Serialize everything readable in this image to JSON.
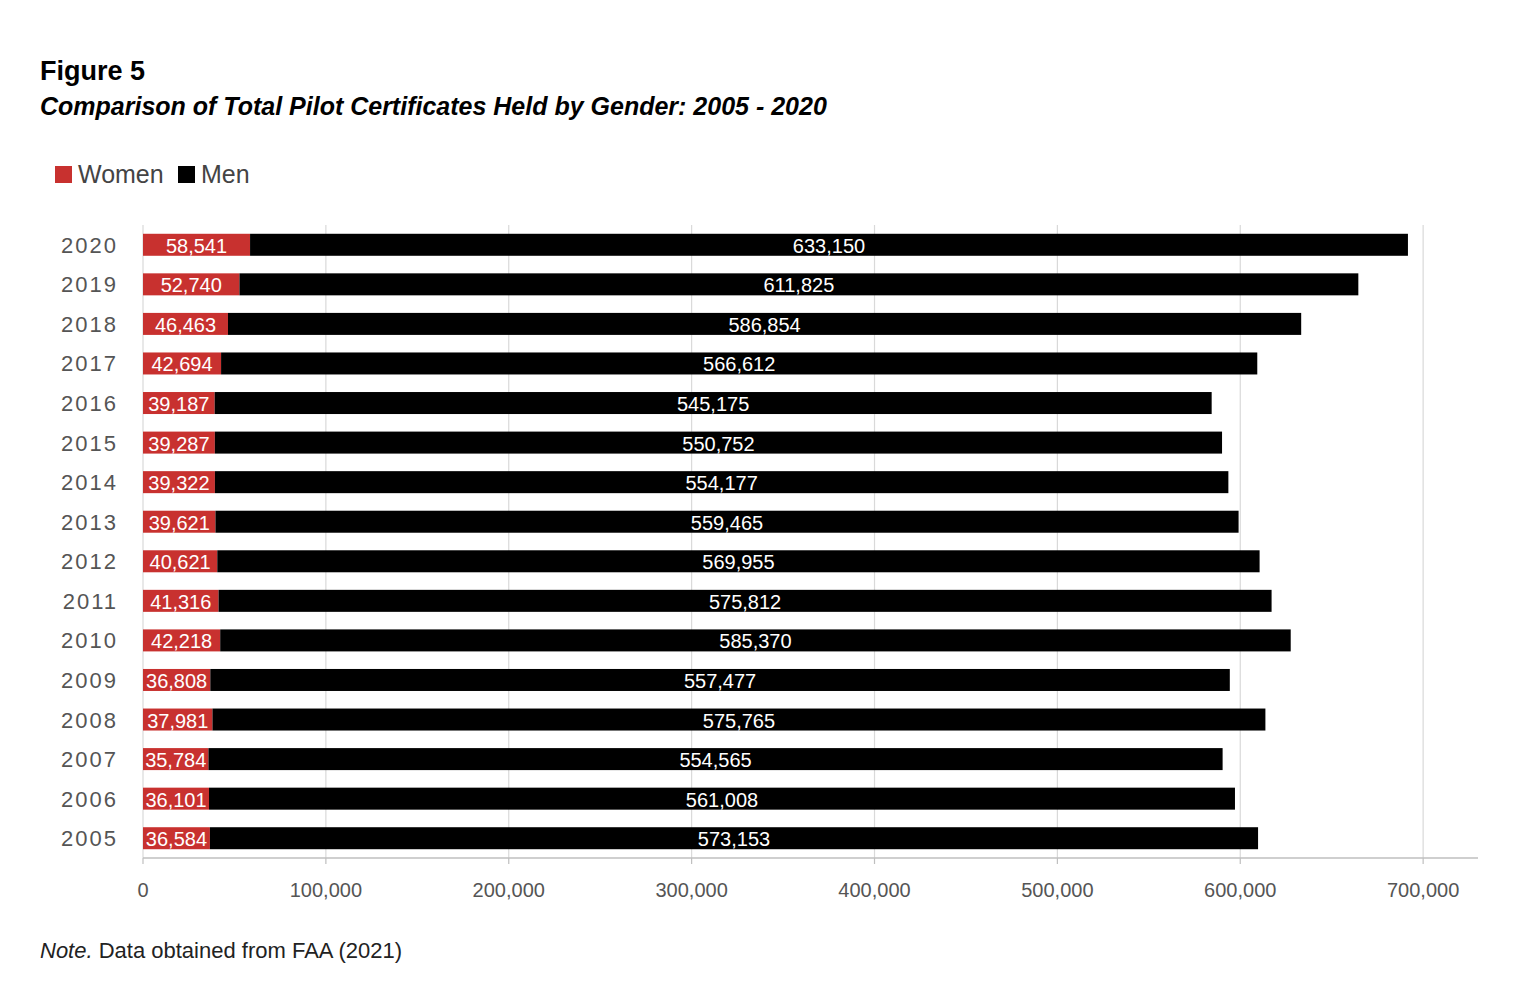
{
  "chart_data": {
    "type": "bar",
    "title": "Figure 5",
    "subtitle": "Comparison of Total Pilot Certificates Held by Gender: 2005 - 2020",
    "annotations": [
      "Note. Data obtained from FAA (2021)"
    ],
    "orientation": "horizontal",
    "stacked": true,
    "data_labels": true,
    "grid": true,
    "legend": "top-left",
    "categories": [
      "2020",
      "2019",
      "2018",
      "2017",
      "2016",
      "2015",
      "2014",
      "2013",
      "2012",
      "2011",
      "2010",
      "2009",
      "2008",
      "2007",
      "2006",
      "2005"
    ],
    "series": [
      {
        "name": "Women",
        "color": "#c8312f",
        "values": [
          58541,
          52740,
          46463,
          42694,
          39187,
          39287,
          39322,
          39621,
          40621,
          41316,
          42218,
          36808,
          37981,
          35784,
          36101,
          36584
        ],
        "value_labels": [
          "58,541",
          "52,740",
          "46,463",
          "42,694",
          "39,187",
          "39,287",
          "39,322",
          "39,621",
          "40,621",
          "41,316",
          "42,218",
          "36,808",
          "37,981",
          "35,784",
          "36,101",
          "36,584"
        ]
      },
      {
        "name": "Men",
        "color": "#000000",
        "values": [
          633150,
          611825,
          586854,
          566612,
          545175,
          550752,
          554177,
          559465,
          569955,
          575812,
          585370,
          557477,
          575765,
          554565,
          561008,
          573153
        ],
        "value_labels": [
          "633,150",
          "611,825",
          "586,854",
          "566,612",
          "545,175",
          "550,752",
          "554,177",
          "559,465",
          "569,955",
          "575,812",
          "585,370",
          "557,477",
          "575,765",
          "554,565",
          "561,008",
          "573,153"
        ]
      }
    ],
    "xlim": [
      0,
      730000
    ],
    "xticks": [
      0,
      {
        "value": 100000,
        "label": "100,000"
      },
      {
        "value": 200000,
        "label": "200,000"
      },
      {
        "value": 300000,
        "label": "300,000"
      },
      {
        "value": 400000,
        "label": "400,000"
      },
      {
        "value": 500000,
        "label": "500,000"
      },
      {
        "value": 600000,
        "label": "600,000"
      },
      {
        "value": 700000,
        "label": "700,000"
      }
    ]
  }
}
